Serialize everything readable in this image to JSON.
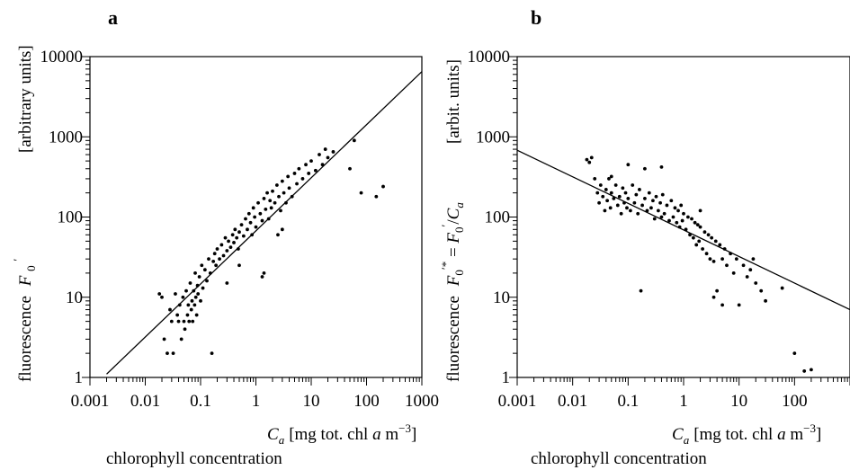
{
  "chart_data": [
    {
      "panel": "a",
      "type": "scatter",
      "xscale": "log",
      "yscale": "log",
      "xlim": [
        0.001,
        1000
      ],
      "ylim": [
        1,
        10000
      ],
      "x_tick_labels": [
        "0.001",
        "0.01",
        "0.1",
        "1",
        "10",
        "100",
        "1000"
      ],
      "y_tick_labels": [
        "1",
        "10",
        "100",
        "1000",
        "10000"
      ],
      "xlabel": "C_a [mg tot. chl a m^-3]",
      "xlabel_sub": "chlorophyll concentration",
      "ylabel": "fluorescence F0'",
      "ylabel_unit": "[arbitrary units]",
      "fit_line": {
        "x": [
          0.002,
          1000
        ],
        "y": [
          1.1,
          6500
        ]
      },
      "points": [
        [
          0.018,
          11
        ],
        [
          0.02,
          10
        ],
        [
          0.022,
          3
        ],
        [
          0.025,
          2
        ],
        [
          0.028,
          7
        ],
        [
          0.03,
          5
        ],
        [
          0.032,
          2
        ],
        [
          0.035,
          11
        ],
        [
          0.038,
          6
        ],
        [
          0.04,
          5
        ],
        [
          0.042,
          8
        ],
        [
          0.045,
          3
        ],
        [
          0.048,
          10
        ],
        [
          0.05,
          5
        ],
        [
          0.052,
          4
        ],
        [
          0.055,
          12
        ],
        [
          0.058,
          6
        ],
        [
          0.06,
          8
        ],
        [
          0.062,
          5
        ],
        [
          0.065,
          15
        ],
        [
          0.068,
          7
        ],
        [
          0.07,
          9
        ],
        [
          0.072,
          5
        ],
        [
          0.075,
          12
        ],
        [
          0.078,
          8
        ],
        [
          0.08,
          20
        ],
        [
          0.082,
          10
        ],
        [
          0.085,
          6
        ],
        [
          0.088,
          14
        ],
        [
          0.09,
          11
        ],
        [
          0.095,
          18
        ],
        [
          0.1,
          9
        ],
        [
          0.105,
          25
        ],
        [
          0.11,
          13
        ],
        [
          0.12,
          22
        ],
        [
          0.13,
          16
        ],
        [
          0.14,
          30
        ],
        [
          0.15,
          20
        ],
        [
          0.16,
          2
        ],
        [
          0.17,
          28
        ],
        [
          0.18,
          35
        ],
        [
          0.19,
          25
        ],
        [
          0.2,
          40
        ],
        [
          0.22,
          30
        ],
        [
          0.24,
          45
        ],
        [
          0.26,
          33
        ],
        [
          0.28,
          55
        ],
        [
          0.3,
          38
        ],
        [
          0.32,
          50
        ],
        [
          0.35,
          42
        ],
        [
          0.38,
          60
        ],
        [
          0.4,
          48
        ],
        [
          0.42,
          70
        ],
        [
          0.45,
          55
        ],
        [
          0.48,
          40
        ],
        [
          0.5,
          65
        ],
        [
          0.55,
          80
        ],
        [
          0.6,
          58
        ],
        [
          0.65,
          95
        ],
        [
          0.7,
          70
        ],
        [
          0.75,
          110
        ],
        [
          0.8,
          85
        ],
        [
          0.85,
          60
        ],
        [
          0.9,
          130
        ],
        [
          0.95,
          100
        ],
        [
          1.0,
          75
        ],
        [
          1.1,
          150
        ],
        [
          1.2,
          110
        ],
        [
          1.3,
          90
        ],
        [
          1.4,
          170
        ],
        [
          1.5,
          125
        ],
        [
          1.6,
          200
        ],
        [
          1.7,
          95
        ],
        [
          1.8,
          160
        ],
        [
          1.9,
          130
        ],
        [
          2.0,
          210
        ],
        [
          2.2,
          150
        ],
        [
          2.4,
          250
        ],
        [
          2.6,
          180
        ],
        [
          2.8,
          120
        ],
        [
          3.0,
          280
        ],
        [
          3.2,
          200
        ],
        [
          3.5,
          150
        ],
        [
          3.8,
          320
        ],
        [
          4.0,
          230
        ],
        [
          4.5,
          180
        ],
        [
          5.0,
          350
        ],
        [
          5.5,
          260
        ],
        [
          6.0,
          400
        ],
        [
          7.0,
          300
        ],
        [
          8.0,
          450
        ],
        [
          9.0,
          350
        ],
        [
          10,
          500
        ],
        [
          12,
          380
        ],
        [
          14,
          600
        ],
        [
          16,
          450
        ],
        [
          18,
          700
        ],
        [
          20,
          550
        ],
        [
          25,
          650
        ],
        [
          50,
          400
        ],
        [
          60,
          900
        ],
        [
          80,
          200
        ],
        [
          150,
          180
        ],
        [
          200,
          240
        ],
        [
          1.3,
          18
        ],
        [
          1.4,
          20
        ],
        [
          0.5,
          25
        ],
        [
          0.3,
          15
        ],
        [
          2.5,
          60
        ],
        [
          3.0,
          70
        ]
      ]
    },
    {
      "panel": "b",
      "type": "scatter",
      "xscale": "log",
      "yscale": "log",
      "xlim": [
        0.001,
        1000
      ],
      "ylim": [
        1,
        10000
      ],
      "x_tick_labels": [
        "0.001",
        "0.01",
        "0.1",
        "1",
        "10",
        "100"
      ],
      "y_tick_labels": [
        "1",
        "10",
        "100",
        "1000",
        "10000"
      ],
      "xlabel": "C_a [mg tot. chl a m^-3]",
      "xlabel_sub": "chlorophyll concentration",
      "ylabel": "fluorescence F0'* = F0'/C_a",
      "ylabel_unit": "[arbit. units]",
      "fit_line": {
        "x": [
          0.001,
          1000
        ],
        "y": [
          680,
          7
        ]
      },
      "points": [
        [
          0.018,
          520
        ],
        [
          0.02,
          480
        ],
        [
          0.022,
          550
        ],
        [
          0.025,
          300
        ],
        [
          0.028,
          200
        ],
        [
          0.03,
          150
        ],
        [
          0.032,
          250
        ],
        [
          0.035,
          180
        ],
        [
          0.038,
          120
        ],
        [
          0.04,
          220
        ],
        [
          0.042,
          160
        ],
        [
          0.045,
          300
        ],
        [
          0.048,
          130
        ],
        [
          0.05,
          200
        ],
        [
          0.055,
          170
        ],
        [
          0.06,
          250
        ],
        [
          0.065,
          140
        ],
        [
          0.07,
          180
        ],
        [
          0.075,
          110
        ],
        [
          0.08,
          230
        ],
        [
          0.085,
          150
        ],
        [
          0.09,
          200
        ],
        [
          0.095,
          130
        ],
        [
          0.1,
          170
        ],
        [
          0.11,
          120
        ],
        [
          0.12,
          250
        ],
        [
          0.13,
          150
        ],
        [
          0.14,
          190
        ],
        [
          0.15,
          110
        ],
        [
          0.16,
          220
        ],
        [
          0.17,
          12
        ],
        [
          0.18,
          140
        ],
        [
          0.2,
          170
        ],
        [
          0.22,
          120
        ],
        [
          0.24,
          200
        ],
        [
          0.26,
          130
        ],
        [
          0.28,
          160
        ],
        [
          0.3,
          95
        ],
        [
          0.32,
          180
        ],
        [
          0.35,
          120
        ],
        [
          0.38,
          150
        ],
        [
          0.4,
          100
        ],
        [
          0.42,
          190
        ],
        [
          0.45,
          110
        ],
        [
          0.5,
          140
        ],
        [
          0.55,
          90
        ],
        [
          0.6,
          160
        ],
        [
          0.65,
          100
        ],
        [
          0.7,
          130
        ],
        [
          0.75,
          85
        ],
        [
          0.8,
          120
        ],
        [
          0.85,
          75
        ],
        [
          0.9,
          140
        ],
        [
          0.95,
          90
        ],
        [
          1.0,
          110
        ],
        [
          1.1,
          70
        ],
        [
          1.2,
          100
        ],
        [
          1.3,
          60
        ],
        [
          1.4,
          95
        ],
        [
          1.5,
          55
        ],
        [
          1.6,
          85
        ],
        [
          1.7,
          45
        ],
        [
          1.8,
          80
        ],
        [
          1.9,
          50
        ],
        [
          2.0,
          75
        ],
        [
          2.2,
          40
        ],
        [
          2.4,
          65
        ],
        [
          2.6,
          35
        ],
        [
          2.8,
          60
        ],
        [
          3.0,
          30
        ],
        [
          3.2,
          55
        ],
        [
          3.5,
          28
        ],
        [
          3.8,
          50
        ],
        [
          4.0,
          12
        ],
        [
          4.5,
          45
        ],
        [
          5.0,
          30
        ],
        [
          5.5,
          40
        ],
        [
          6.0,
          25
        ],
        [
          7.0,
          35
        ],
        [
          8.0,
          20
        ],
        [
          9.0,
          30
        ],
        [
          10,
          8
        ],
        [
          12,
          25
        ],
        [
          14,
          18
        ],
        [
          16,
          22
        ],
        [
          18,
          30
        ],
        [
          20,
          15
        ],
        [
          25,
          12
        ],
        [
          0.4,
          420
        ],
        [
          0.2,
          400
        ],
        [
          0.1,
          450
        ],
        [
          0.05,
          320
        ],
        [
          100,
          2
        ],
        [
          150,
          1.2
        ],
        [
          200,
          1.25
        ],
        [
          60,
          13
        ],
        [
          30,
          9
        ],
        [
          5,
          8
        ],
        [
          3.5,
          10
        ],
        [
          2.0,
          120
        ]
      ]
    }
  ],
  "panels": {
    "a": {
      "letter": "a",
      "ylabel_unit": "[arbitrary units]",
      "ylabel_main": "fluorescence",
      "ylabel_symbol": "F",
      "xlabel_symbol": "C",
      "xlabel_rest": "[mg tot. chl ",
      "xlabel_a": "a",
      "xlabel_unit": " m",
      "xlabel_exp": "−3",
      "xlabel_close": "]",
      "xlabel_sub": "chlorophyll concentration"
    },
    "b": {
      "letter": "b",
      "ylabel_unit": "[arbit. units]",
      "ylabel_main": "fluorescence",
      "ylabel_symbol": "F",
      "ylabel_eq": " = ",
      "ylabel_div": "/",
      "xlabel_symbol": "C",
      "xlabel_rest": "[mg tot. chl ",
      "xlabel_a": "a",
      "xlabel_unit": " m",
      "xlabel_exp": "−3",
      "xlabel_close": "]",
      "xlabel_sub": "chlorophyll concentration"
    }
  }
}
